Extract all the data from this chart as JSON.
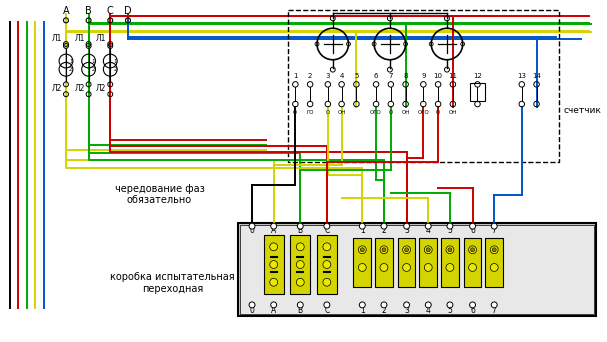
{
  "fig_width": 6.07,
  "fig_height": 3.42,
  "dpi": 100,
  "bg_color": "#ffffff",
  "text_cheredor": "чередование фаз\nобязательно",
  "text_korobka": "коробка испытательная\nпереходная",
  "text_schetchik": "счетчик",
  "YEL": "#d4d400",
  "GRN": "#00aa00",
  "RED": "#cc0000",
  "BLK": "#000000",
  "BLU": "#0055cc",
  "BRN": "#884400",
  "LGRAY": "#c8c8c8"
}
